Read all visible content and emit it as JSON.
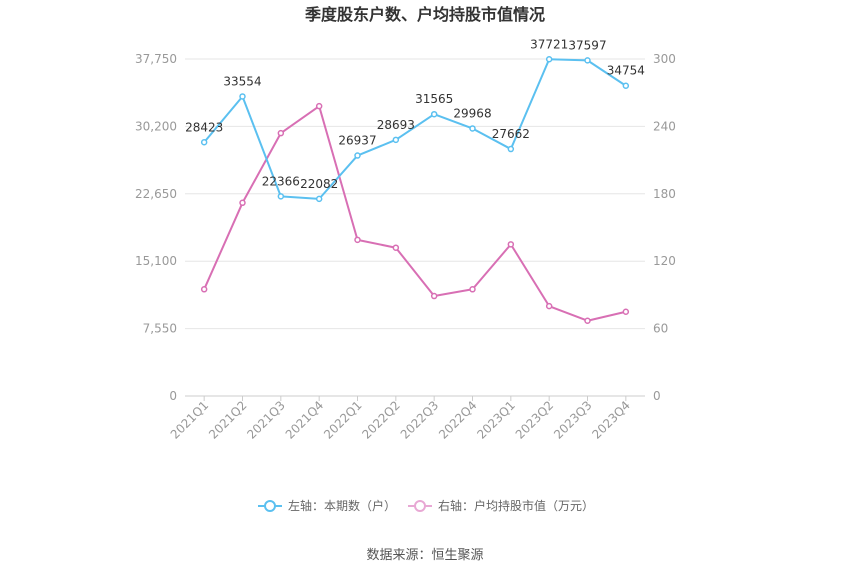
{
  "chart_data": {
    "type": "line",
    "title": "季度股东户数、户均持股市值情况",
    "categories": [
      "2021Q1",
      "2021Q2",
      "2021Q3",
      "2021Q4",
      "2022Q1",
      "2022Q2",
      "2022Q3",
      "2022Q4",
      "2023Q1",
      "2023Q2",
      "2023Q3",
      "2023Q4"
    ],
    "left_axis": {
      "ticks": [
        "0",
        "7,550",
        "15,100",
        "22,650",
        "30,200",
        "37,750"
      ],
      "ylim": [
        0,
        37750
      ]
    },
    "right_axis": {
      "ticks": [
        "0",
        "60",
        "120",
        "180",
        "240",
        "300"
      ],
      "ylim": [
        0,
        300
      ]
    },
    "series": [
      {
        "name": "左轴：本期数（户）",
        "axis": "left",
        "color": "#5bc0f0",
        "values": [
          28423,
          33554,
          22366,
          22082,
          26937,
          28693,
          31565,
          29968,
          27662,
          37721,
          37597,
          34754
        ],
        "labels": [
          "28423",
          "33554",
          "22366",
          "22082",
          "26937",
          "28693",
          "31565",
          "29968",
          "27662",
          "37721",
          "37597",
          "34754"
        ]
      },
      {
        "name": "右轴：户均持股市值（万元）",
        "axis": "right",
        "color": "#d86fb4",
        "values": [
          95,
          172,
          234,
          258,
          139,
          132,
          89,
          95,
          135,
          80,
          67,
          75
        ]
      }
    ],
    "grid": true,
    "legend_position": "bottom"
  },
  "source": "数据来源：恒生聚源"
}
